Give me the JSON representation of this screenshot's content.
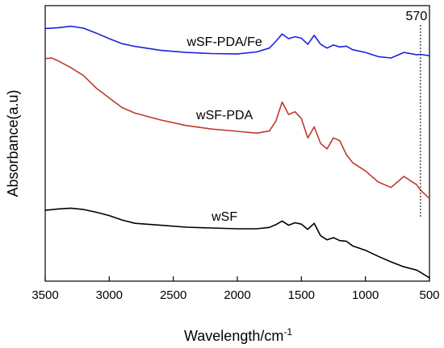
{
  "chart_data": {
    "type": "line",
    "title": "",
    "xlabel": "Wavelength/cm",
    "xlabel_superscript": "-1",
    "ylabel": "Absorbance(a.u)",
    "xlim": [
      3500,
      500
    ],
    "x_reversed": true,
    "ylim": [
      0,
      1
    ],
    "y_ticks_shown": false,
    "grid": false,
    "legend": "none",
    "xticks": [
      3500,
      3000,
      2500,
      2000,
      1500,
      1000,
      500
    ],
    "xtick_labels": [
      "3500",
      "3000",
      "2500",
      "2000",
      "1500",
      "1000",
      "500"
    ],
    "annotations": [
      {
        "text": "570",
        "x": 570,
        "style": "dashed-vertical-line"
      }
    ],
    "series": [
      {
        "name": "wSF-PDA/Fe",
        "color": "#1f1fe0",
        "x": [
          3500,
          3400,
          3300,
          3200,
          3100,
          3000,
          2900,
          2800,
          2600,
          2400,
          2200,
          2000,
          1850,
          1750,
          1700,
          1650,
          1600,
          1550,
          1500,
          1450,
          1400,
          1350,
          1300,
          1250,
          1200,
          1150,
          1100,
          1000,
          900,
          800,
          700,
          600,
          570,
          500
        ],
        "y": [
          0.917,
          0.92,
          0.925,
          0.918,
          0.9,
          0.88,
          0.862,
          0.852,
          0.838,
          0.83,
          0.826,
          0.825,
          0.832,
          0.846,
          0.87,
          0.897,
          0.88,
          0.887,
          0.882,
          0.86,
          0.892,
          0.86,
          0.846,
          0.857,
          0.85,
          0.853,
          0.84,
          0.83,
          0.815,
          0.81,
          0.83,
          0.822,
          0.823,
          0.818
        ]
      },
      {
        "name": "wSF-PDA",
        "color": "#c0392b",
        "x": [
          3500,
          3450,
          3400,
          3300,
          3200,
          3100,
          3000,
          2900,
          2800,
          2600,
          2400,
          2200,
          2000,
          1850,
          1750,
          1700,
          1650,
          1600,
          1550,
          1500,
          1450,
          1400,
          1350,
          1300,
          1250,
          1200,
          1150,
          1100,
          1000,
          900,
          800,
          700,
          600,
          570,
          500
        ],
        "y": [
          0.808,
          0.81,
          0.8,
          0.775,
          0.746,
          0.7,
          0.665,
          0.63,
          0.61,
          0.585,
          0.565,
          0.552,
          0.544,
          0.537,
          0.545,
          0.58,
          0.65,
          0.605,
          0.615,
          0.59,
          0.52,
          0.56,
          0.5,
          0.48,
          0.52,
          0.51,
          0.46,
          0.43,
          0.4,
          0.36,
          0.34,
          0.38,
          0.35,
          0.33,
          0.3
        ]
      },
      {
        "name": "wSF",
        "color": "#000000",
        "x": [
          3500,
          3400,
          3300,
          3200,
          3100,
          3000,
          2900,
          2800,
          2600,
          2400,
          2200,
          2000,
          1850,
          1750,
          1700,
          1650,
          1600,
          1550,
          1500,
          1450,
          1400,
          1350,
          1300,
          1250,
          1200,
          1150,
          1100,
          1000,
          900,
          800,
          700,
          600,
          570,
          500
        ],
        "y": [
          0.257,
          0.262,
          0.265,
          0.26,
          0.25,
          0.238,
          0.222,
          0.21,
          0.203,
          0.196,
          0.193,
          0.19,
          0.19,
          0.195,
          0.205,
          0.218,
          0.203,
          0.212,
          0.207,
          0.188,
          0.21,
          0.165,
          0.15,
          0.158,
          0.147,
          0.145,
          0.128,
          0.112,
          0.09,
          0.07,
          0.052,
          0.04,
          0.032,
          0.012
        ]
      }
    ]
  }
}
